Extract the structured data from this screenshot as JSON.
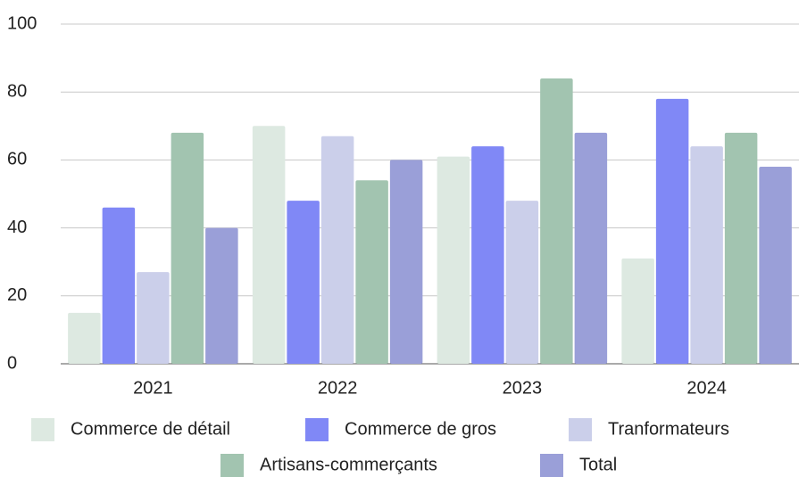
{
  "chart_data": {
    "type": "bar",
    "categories": [
      "2021",
      "2022",
      "2023",
      "2024"
    ],
    "series": [
      {
        "name": "Commerce de détail",
        "color": "#dde9e1",
        "values": [
          15,
          70,
          61,
          31
        ]
      },
      {
        "name": "Commerce de gros",
        "color": "#8088f6",
        "values": [
          46,
          48,
          64,
          78
        ]
      },
      {
        "name": "Tranformateurs",
        "color": "#cbcfea",
        "values": [
          27,
          67,
          48,
          64
        ]
      },
      {
        "name": "Artisans-commerçants",
        "color": "#a2c4b0",
        "values": [
          68,
          54,
          84,
          68
        ]
      },
      {
        "name": "Total",
        "color": "#9a9fd8",
        "values": [
          40,
          60,
          68,
          58
        ]
      }
    ],
    "ylim": [
      0,
      100
    ],
    "yticks": [
      0,
      20,
      40,
      60,
      80,
      100
    ],
    "grid": true,
    "legend": "bottom"
  }
}
